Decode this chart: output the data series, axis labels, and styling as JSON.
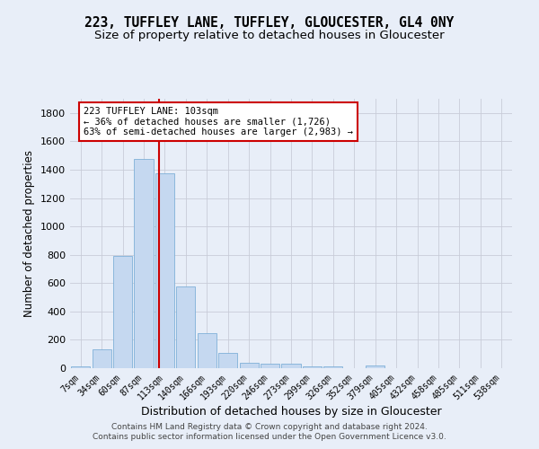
{
  "title_line1": "223, TUFFLEY LANE, TUFFLEY, GLOUCESTER, GL4 0NY",
  "title_line2": "Size of property relative to detached houses in Gloucester",
  "xlabel": "Distribution of detached houses by size in Gloucester",
  "ylabel": "Number of detached properties",
  "bar_color": "#c5d8f0",
  "bar_edge_color": "#7fb0d8",
  "categories": [
    "7sqm",
    "34sqm",
    "60sqm",
    "87sqm",
    "113sqm",
    "140sqm",
    "166sqm",
    "193sqm",
    "220sqm",
    "246sqm",
    "273sqm",
    "299sqm",
    "326sqm",
    "352sqm",
    "379sqm",
    "405sqm",
    "432sqm",
    "458sqm",
    "485sqm",
    "511sqm",
    "538sqm"
  ],
  "values": [
    15,
    130,
    790,
    1475,
    1375,
    575,
    250,
    110,
    35,
    30,
    30,
    15,
    15,
    0,
    20,
    0,
    0,
    0,
    0,
    0,
    0
  ],
  "ylim": [
    0,
    1900
  ],
  "yticks": [
    0,
    200,
    400,
    600,
    800,
    1000,
    1200,
    1400,
    1600,
    1800
  ],
  "vline_x": 3.72,
  "annotation_text": "223 TUFFLEY LANE: 103sqm\n← 36% of detached houses are smaller (1,726)\n63% of semi-detached houses are larger (2,983) →",
  "annotation_box_color": "#ffffff",
  "annotation_box_edge": "#cc0000",
  "vline_color": "#cc0000",
  "footer_line1": "Contains HM Land Registry data © Crown copyright and database right 2024.",
  "footer_line2": "Contains public sector information licensed under the Open Government Licence v3.0.",
  "bg_color": "#e8eef8",
  "grid_color": "#c8ccd8",
  "title_fontsize": 10.5,
  "subtitle_fontsize": 9.5,
  "tick_label_fontsize": 7,
  "ylabel_fontsize": 8.5,
  "xlabel_fontsize": 9,
  "footer_fontsize": 6.5,
  "annotation_fontsize": 7.5
}
